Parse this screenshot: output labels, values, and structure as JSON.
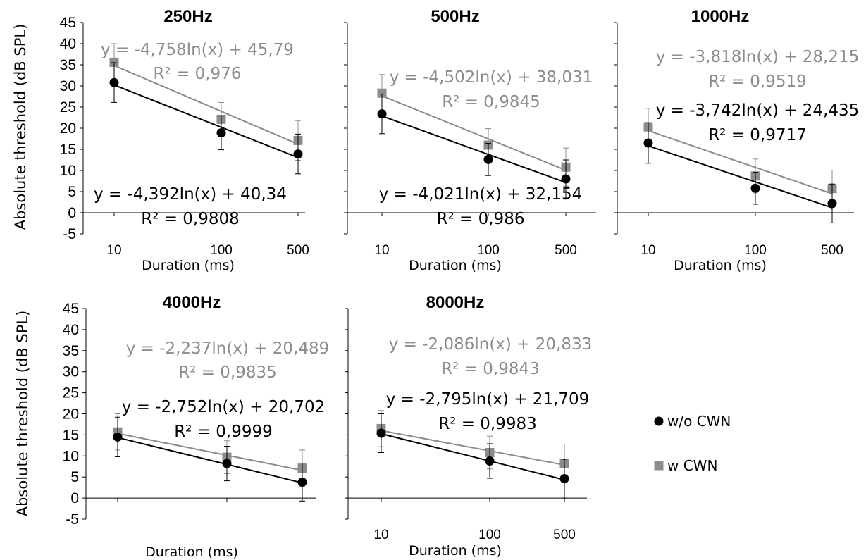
{
  "colors": {
    "wo": "#000000",
    "w": "#8c8c8c"
  },
  "legend": [
    {
      "label": "w/o CWN",
      "marker": "circle",
      "color": "#000000"
    },
    {
      "label": "w CWN",
      "marker": "square",
      "color": "#8c8c8c"
    }
  ],
  "chart_data": [
    {
      "type": "scatter",
      "title": "250Hz",
      "xlabel": "Duration (ms)",
      "ylabel": "Absolute threshold (dB SPL)",
      "x_scale": "log",
      "x_ticks": [
        "10",
        "100",
        "500"
      ],
      "x": [
        10,
        100,
        500
      ],
      "ylim": [
        -5,
        45
      ],
      "y_ticks": [
        "45",
        "40",
        "35",
        "30",
        "25",
        "20",
        "15",
        "10",
        "5",
        "0",
        "-5"
      ],
      "series": [
        {
          "name": "w/o CWN",
          "values": [
            30.8,
            18.9,
            13.9
          ],
          "err": [
            4.7,
            4.0,
            4.7
          ],
          "trend": {
            "a": -4.392,
            "b": 40.34
          },
          "equation": "y = -4,392ln(x) + 40,34",
          "r2": "R² = 0,9808"
        },
        {
          "name": "w CWN",
          "values": [
            35.6,
            22.1,
            17.1
          ],
          "err": [
            4.4,
            4.0,
            4.7
          ],
          "trend": {
            "a": -4.758,
            "b": 45.79
          },
          "equation": "y = -4,758ln(x) + 45,79",
          "r2": "R² = 0,976"
        }
      ]
    },
    {
      "type": "scatter",
      "title": "500Hz",
      "xlabel": "Duration (ms)",
      "ylabel": "",
      "x_scale": "log",
      "x_ticks": [
        "10",
        "100",
        "500"
      ],
      "x": [
        10,
        100,
        500
      ],
      "ylim": [
        -5,
        45
      ],
      "y_ticks": [],
      "series": [
        {
          "name": "w/o CWN",
          "values": [
            23.4,
            12.6,
            8.0
          ],
          "err": [
            4.7,
            3.8,
            4.5
          ],
          "trend": {
            "a": -4.021,
            "b": 32.154
          },
          "equation": "y = -4,021ln(x) + 32,154",
          "r2": "R² = 0,986"
        },
        {
          "name": "w CWN",
          "values": [
            28.3,
            16.0,
            10.8
          ],
          "err": [
            4.4,
            3.9,
            4.5
          ],
          "trend": {
            "a": -4.502,
            "b": 38.031
          },
          "equation": "y = -4,502ln(x) + 38,031",
          "r2": "R² = 0,9845"
        }
      ]
    },
    {
      "type": "scatter",
      "title": "1000Hz",
      "xlabel": "Duration (ms)",
      "ylabel": "",
      "x_scale": "log",
      "x_ticks": [
        "10",
        "100",
        "500"
      ],
      "x": [
        10,
        100,
        500
      ],
      "ylim": [
        -5,
        45
      ],
      "y_ticks": [],
      "series": [
        {
          "name": "w/o CWN",
          "values": [
            16.5,
            5.8,
            2.2
          ],
          "err": [
            4.8,
            3.8,
            4.6
          ],
          "trend": {
            "a": -3.742,
            "b": 24.435
          },
          "equation": "y = -3,742ln(x) + 24,435",
          "r2": "R² = 0,9717"
        },
        {
          "name": "w CWN",
          "values": [
            20.3,
            8.7,
            5.7
          ],
          "err": [
            4.4,
            4.0,
            4.4
          ],
          "trend": {
            "a": -3.818,
            "b": 28.215
          },
          "equation": "y = -3,818ln(x) + 28,215",
          "r2": "R² = 0,9519"
        }
      ]
    },
    {
      "type": "scatter",
      "title": "4000Hz",
      "xlabel": "Duration (ms)",
      "ylabel": "Absolute threshold (dB SPL)",
      "x_scale": "log",
      "x_ticks": [],
      "x": [
        10,
        100,
        500
      ],
      "ylim": [
        -5,
        45
      ],
      "y_ticks": [
        "45",
        "40",
        "35",
        "30",
        "25",
        "20",
        "15",
        "10",
        "5",
        "0",
        "-5"
      ],
      "series": [
        {
          "name": "w/o CWN",
          "values": [
            14.5,
            8.2,
            3.8
          ],
          "err": [
            4.7,
            4.1,
            4.5
          ],
          "trend": {
            "a": -2.752,
            "b": 20.702
          },
          "equation": "y = -2,752ln(x) + 20,702",
          "r2": "R² = 0,9999"
        },
        {
          "name": "w CWN",
          "values": [
            15.7,
            9.7,
            7.1
          ],
          "err": [
            4.3,
            3.9,
            4.3
          ],
          "trend": {
            "a": -2.237,
            "b": 20.489
          },
          "equation": "y = -2,237ln(x) + 20,489",
          "r2": "R² = 0,9835"
        }
      ]
    },
    {
      "type": "scatter",
      "title": "8000Hz",
      "xlabel": "Duration (ms)",
      "ylabel": "",
      "x_scale": "log",
      "x_ticks": [
        "10",
        "100",
        "500"
      ],
      "x": [
        10,
        100,
        500
      ],
      "ylim": [
        -5,
        45
      ],
      "y_ticks": [],
      "series": [
        {
          "name": "w/o CWN",
          "values": [
            15.4,
            8.8,
            4.6
          ],
          "err": [
            4.6,
            4.1,
            4.6
          ],
          "trend": {
            "a": -2.795,
            "b": 21.709
          },
          "equation": "y = -2,795ln(x) + 21,709",
          "r2": "R² = 0,9983"
        },
        {
          "name": "w CWN",
          "values": [
            16.5,
            10.8,
            8.2
          ],
          "err": [
            4.3,
            3.9,
            4.6
          ],
          "trend": {
            "a": -2.086,
            "b": 20.833
          },
          "equation": "y = -2,086ln(x) + 20,833",
          "r2": "R² = 0,9843"
        }
      ]
    }
  ]
}
